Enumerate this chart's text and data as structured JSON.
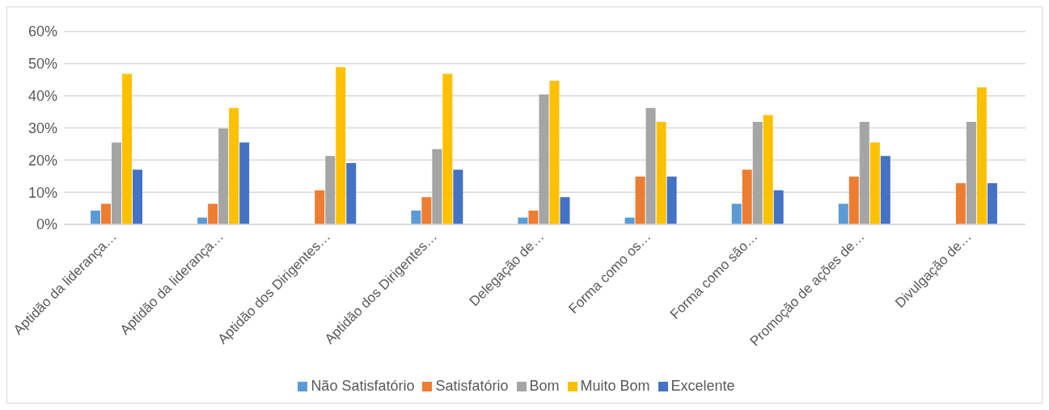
{
  "chart_data": {
    "type": "bar",
    "categories": [
      "Aptidão da liderança…",
      "Aptidão da liderança…",
      "Aptidão dos Dirigentes…",
      "Aptidão dos Dirigentes…",
      "Delegação de…",
      "Forma como os…",
      "Forma como são…",
      "Promoção de ações de…",
      "Divulgação de…"
    ],
    "series": [
      {
        "name": "Não Satisfatório",
        "color": "#5b9bd5",
        "values": [
          4.3,
          2.1,
          0,
          4.3,
          2.1,
          2.1,
          6.4,
          6.4,
          0
        ]
      },
      {
        "name": "Satisfatório",
        "color": "#ed7d31",
        "values": [
          6.4,
          6.4,
          10.6,
          8.5,
          4.3,
          14.9,
          17,
          14.9,
          12.8
        ]
      },
      {
        "name": "Bom",
        "color": "#a5a5a5",
        "values": [
          25.5,
          29.8,
          21.3,
          23.4,
          40.4,
          36.2,
          31.9,
          31.9,
          31.9
        ]
      },
      {
        "name": "Muito Bom",
        "color": "#ffc000",
        "values": [
          46.8,
          36.2,
          48.9,
          46.8,
          44.7,
          31.9,
          34,
          25.5,
          42.6
        ]
      },
      {
        "name": "Excelente",
        "color": "#4472c4",
        "values": [
          17,
          25.5,
          19.1,
          17,
          8.5,
          14.9,
          10.6,
          21.3,
          12.8
        ]
      }
    ],
    "ylim": [
      0,
      60
    ],
    "yticks": [
      {
        "value": 0,
        "label": "0%"
      },
      {
        "value": 10,
        "label": "10%"
      },
      {
        "value": 20,
        "label": "20%"
      },
      {
        "value": 30,
        "label": "30%"
      },
      {
        "value": 40,
        "label": "40%"
      },
      {
        "value": 50,
        "label": "50%"
      },
      {
        "value": 60,
        "label": "60%"
      }
    ],
    "grid": "y",
    "legend": "bottom"
  }
}
